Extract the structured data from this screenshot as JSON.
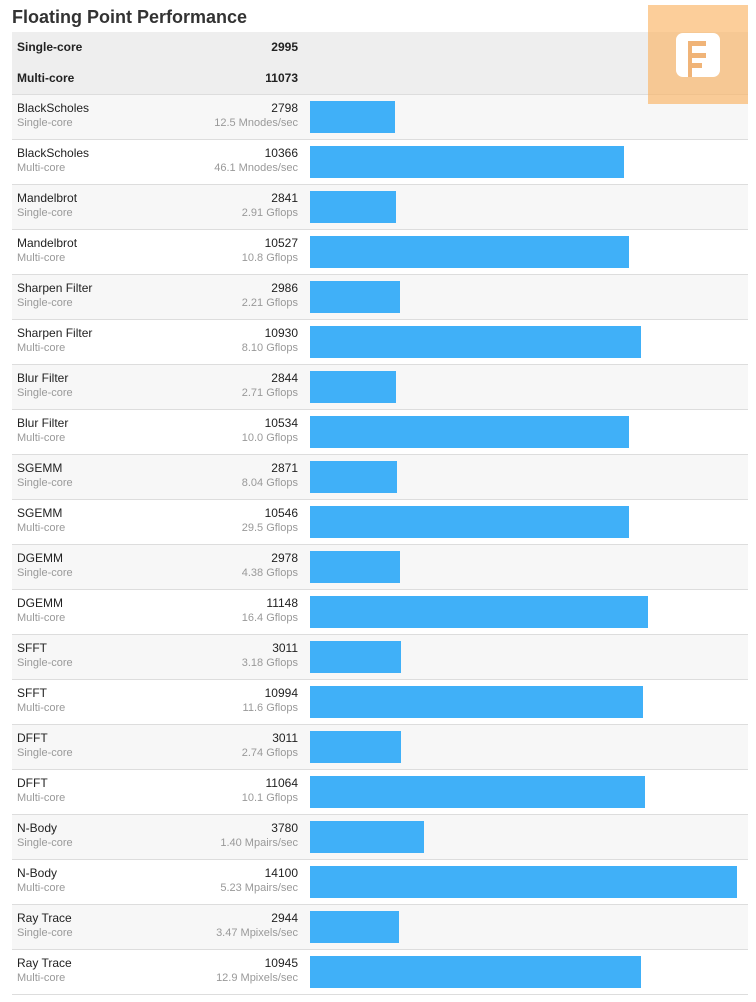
{
  "title": "Floating Point Performance",
  "summary": [
    {
      "label": "Single-core",
      "score": "2995"
    },
    {
      "label": "Multi-core",
      "score": "11073"
    }
  ],
  "chart_data": {
    "type": "bar",
    "title": "Floating Point Performance",
    "xlim": [
      0,
      14100
    ],
    "rows": [
      {
        "name": "BlackScholes",
        "mode": "Single-core",
        "score": 2798,
        "rate": "12.5 Mnodes/sec"
      },
      {
        "name": "BlackScholes",
        "mode": "Multi-core",
        "score": 10366,
        "rate": "46.1 Mnodes/sec"
      },
      {
        "name": "Mandelbrot",
        "mode": "Single-core",
        "score": 2841,
        "rate": "2.91 Gflops"
      },
      {
        "name": "Mandelbrot",
        "mode": "Multi-core",
        "score": 10527,
        "rate": "10.8 Gflops"
      },
      {
        "name": "Sharpen Filter",
        "mode": "Single-core",
        "score": 2986,
        "rate": "2.21 Gflops"
      },
      {
        "name": "Sharpen Filter",
        "mode": "Multi-core",
        "score": 10930,
        "rate": "8.10 Gflops"
      },
      {
        "name": "Blur Filter",
        "mode": "Single-core",
        "score": 2844,
        "rate": "2.71 Gflops"
      },
      {
        "name": "Blur Filter",
        "mode": "Multi-core",
        "score": 10534,
        "rate": "10.0 Gflops"
      },
      {
        "name": "SGEMM",
        "mode": "Single-core",
        "score": 2871,
        "rate": "8.04 Gflops"
      },
      {
        "name": "SGEMM",
        "mode": "Multi-core",
        "score": 10546,
        "rate": "29.5 Gflops"
      },
      {
        "name": "DGEMM",
        "mode": "Single-core",
        "score": 2978,
        "rate": "4.38 Gflops"
      },
      {
        "name": "DGEMM",
        "mode": "Multi-core",
        "score": 11148,
        "rate": "16.4 Gflops"
      },
      {
        "name": "SFFT",
        "mode": "Single-core",
        "score": 3011,
        "rate": "3.18 Gflops"
      },
      {
        "name": "SFFT",
        "mode": "Multi-core",
        "score": 10994,
        "rate": "11.6 Gflops"
      },
      {
        "name": "DFFT",
        "mode": "Single-core",
        "score": 3011,
        "rate": "2.74 Gflops"
      },
      {
        "name": "DFFT",
        "mode": "Multi-core",
        "score": 11064,
        "rate": "10.1 Gflops"
      },
      {
        "name": "N-Body",
        "mode": "Single-core",
        "score": 3780,
        "rate": "1.40 Mpairs/sec"
      },
      {
        "name": "N-Body",
        "mode": "Multi-core",
        "score": 14100,
        "rate": "5.23 Mpairs/sec"
      },
      {
        "name": "Ray Trace",
        "mode": "Single-core",
        "score": 2944,
        "rate": "3.47 Mpixels/sec"
      },
      {
        "name": "Ray Trace",
        "mode": "Multi-core",
        "score": 10945,
        "rate": "12.9 Mpixels/sec"
      }
    ]
  },
  "colors": {
    "bar": "#40b0f8",
    "logo": "#fab464"
  }
}
